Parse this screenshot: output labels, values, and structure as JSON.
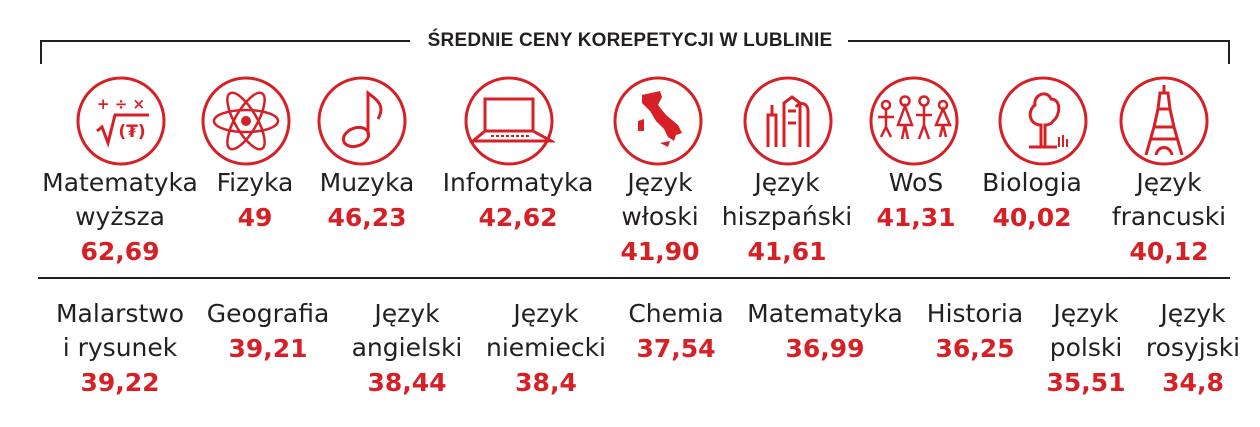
{
  "title": "ŚREDNIE CENY KOREPETYCJI W LUBLINIE",
  "colors": {
    "accent": "#d71f26",
    "text": "#231f20",
    "rule": "#231f20"
  },
  "chart_data": {
    "type": "table",
    "title": "ŚREDNIE CENY KOREPETYCJI W LUBLINIE",
    "unit": "",
    "rows": [
      {
        "items": [
          {
            "name": [
              "Matematyka",
              "wyższa"
            ],
            "value": "62,69",
            "icon": "math-symbols-icon"
          },
          {
            "name": [
              "Fizyka"
            ],
            "value": "49",
            "icon": "atom-icon"
          },
          {
            "name": [
              "Muzyka"
            ],
            "value": "46,23",
            "icon": "music-note-icon"
          },
          {
            "name": [
              "Informatyka"
            ],
            "value": "42,62",
            "icon": "laptop-icon"
          },
          {
            "name": [
              "Język",
              "włoski"
            ],
            "value": "41,90",
            "icon": "italy-map-icon"
          },
          {
            "name": [
              "Język",
              "hiszpański"
            ],
            "value": "41,61",
            "icon": "spanish-monument-icon"
          },
          {
            "name": [
              "WoS"
            ],
            "value": "41,31",
            "icon": "people-group-icon"
          },
          {
            "name": [
              "Biologia"
            ],
            "value": "40,02",
            "icon": "tree-icon"
          },
          {
            "name": [
              "Język",
              "francuski"
            ],
            "value": "40,12",
            "icon": "eiffel-tower-icon"
          }
        ]
      },
      {
        "items": [
          {
            "name": [
              "Malarstwo",
              "i rysunek"
            ],
            "value": "39,22"
          },
          {
            "name": [
              "Geografia"
            ],
            "value": "39,21"
          },
          {
            "name": [
              "Język",
              "angielski"
            ],
            "value": "38,44"
          },
          {
            "name": [
              "Język",
              "niemiecki"
            ],
            "value": "38,4"
          },
          {
            "name": [
              "Chemia"
            ],
            "value": "37,54"
          },
          {
            "name": [
              "Matematyka"
            ],
            "value": "36,99"
          },
          {
            "name": [
              "Historia"
            ],
            "value": "36,25"
          },
          {
            "name": [
              "Język",
              "polski"
            ],
            "value": "35,51"
          },
          {
            "name": [
              "Język",
              "rosyjski"
            ],
            "value": "34,8"
          }
        ]
      }
    ]
  }
}
